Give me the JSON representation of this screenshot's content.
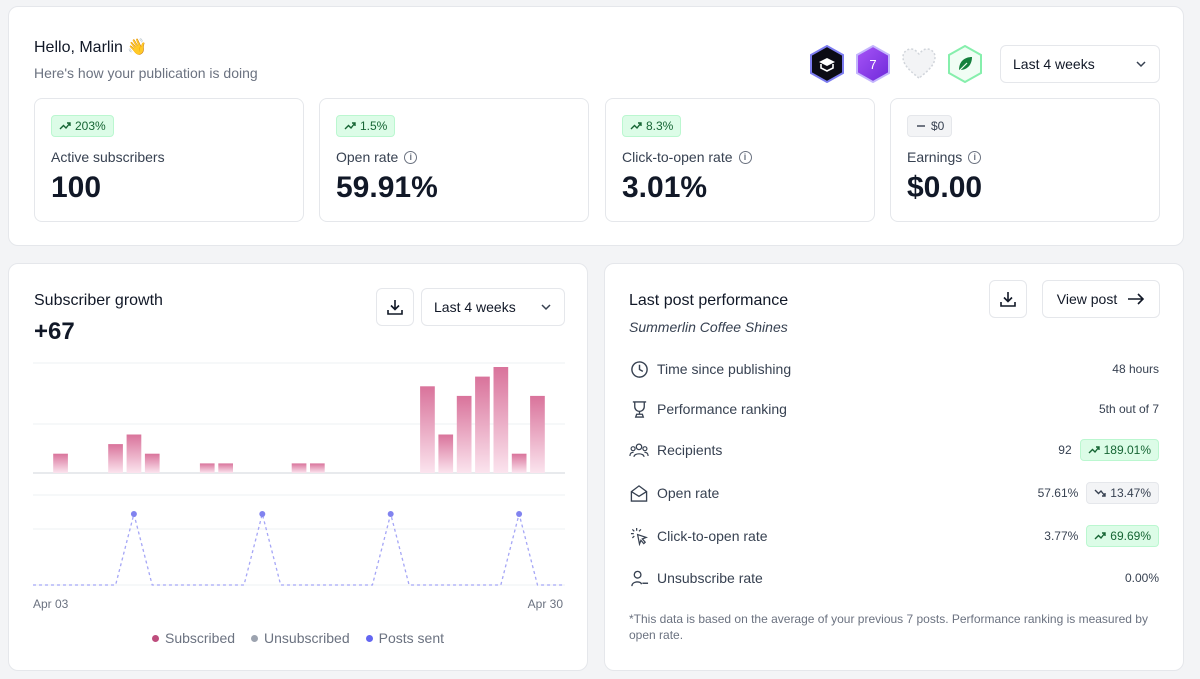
{
  "header": {
    "greeting": "Hello, Marlin 👋",
    "subtitle": "Here's how your publication is doing",
    "period_select": "Last 4 weeks",
    "badges": [
      "dark-hex-badge-icon",
      "seven-badge-icon",
      "heart-badge-icon",
      "leaf-badge-icon"
    ],
    "badge_seven_text": "7"
  },
  "stats": [
    {
      "label": "Active subscribers",
      "value": "100",
      "delta": "203%",
      "trend": "up",
      "info": false
    },
    {
      "label": "Open rate",
      "value": "59.91%",
      "delta": "1.5%",
      "trend": "up",
      "info": true
    },
    {
      "label": "Click-to-open rate",
      "value": "3.01%",
      "delta": "8.3%",
      "trend": "up",
      "info": true
    },
    {
      "label": "Earnings",
      "value": "$0.00",
      "delta": "$0",
      "trend": "neutral",
      "info": true
    }
  ],
  "growth": {
    "title": "Subscriber growth",
    "value": "+67",
    "period_select": "Last 4 weeks",
    "x_start": "Apr 03",
    "x_end": "Apr 30",
    "legend": [
      {
        "label": "Subscribed",
        "color": "#be4d7d"
      },
      {
        "label": "Unsubscribed",
        "color": "#9ca3af"
      },
      {
        "label": "Posts sent",
        "color": "#6366f1"
      }
    ]
  },
  "chart_data": {
    "type": "bar",
    "x_range": [
      "Apr 03",
      "Apr 30"
    ],
    "series": [
      {
        "name": "Subscribed",
        "values": [
          0,
          2,
          0,
          0,
          3,
          4,
          2,
          0,
          0,
          1,
          1,
          0,
          0,
          0,
          1,
          1,
          0,
          0,
          0,
          0,
          0,
          9,
          4,
          8,
          10,
          11,
          2,
          8,
          0
        ]
      },
      {
        "name": "Posts sent",
        "values": [
          0,
          0,
          0,
          0,
          0,
          1,
          0,
          0,
          0,
          0,
          0,
          0,
          1,
          0,
          0,
          0,
          0,
          0,
          0,
          1,
          0,
          0,
          0,
          0,
          0,
          0,
          1,
          0,
          0
        ]
      }
    ],
    "grid": true
  },
  "post": {
    "title": "Last post performance",
    "subtitle": "Summerlin Coffee Shines",
    "view_label": "View post",
    "metrics": [
      {
        "icon": "clock-icon",
        "label": "Time since publishing",
        "value": "48 hours"
      },
      {
        "icon": "trophy-icon",
        "label": "Performance ranking",
        "value": "5th out of 7"
      },
      {
        "icon": "users-icon",
        "label": "Recipients",
        "value": "92",
        "delta": "189.01%",
        "trend": "up"
      },
      {
        "icon": "envelope-open-icon",
        "label": "Open rate",
        "value": "57.61%",
        "delta": "13.47%",
        "trend": "down"
      },
      {
        "icon": "cursor-click-icon",
        "label": "Click-to-open rate",
        "value": "3.77%",
        "delta": "69.69%",
        "trend": "up"
      },
      {
        "icon": "user-minus-icon",
        "label": "Unsubscribe rate",
        "value": "0.00%"
      }
    ],
    "footnote": "*This data is based on the average of your previous 7 posts. Performance ranking is measured by open rate."
  }
}
